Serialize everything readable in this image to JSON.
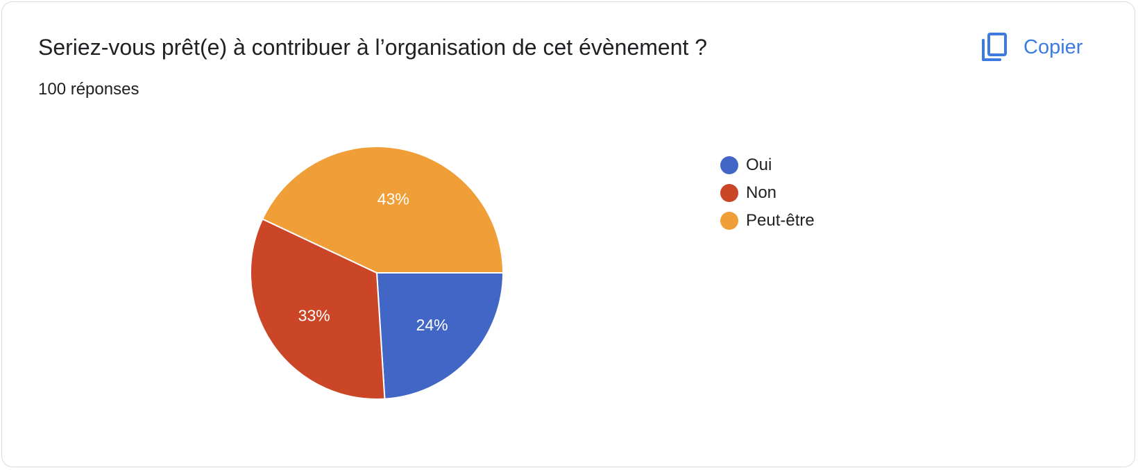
{
  "card": {
    "title": "Seriez-vous prêt(e) à contribuer à l’organisation de cet évènement ?",
    "response_count": "100 réponses",
    "copy_label": "Copier",
    "copy_icon": "copy-icon",
    "accent_color": "#3c7be0"
  },
  "chart_data": {
    "type": "pie",
    "title": "",
    "categories": [
      "Oui",
      "Non",
      "Peut-être"
    ],
    "values": [
      24,
      33,
      43
    ],
    "labels": [
      "24%",
      "33%",
      "43%"
    ],
    "colors": [
      "#4266c6",
      "#cb4527",
      "#f09e37"
    ],
    "legend": "right"
  }
}
